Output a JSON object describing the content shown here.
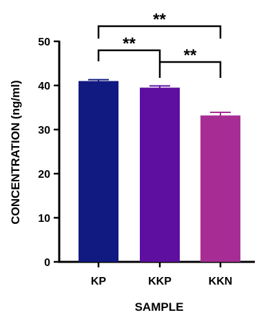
{
  "chart_data": {
    "type": "bar",
    "categories": [
      "KP",
      "KKP",
      "KKN"
    ],
    "values": [
      41,
      39.5,
      33.2
    ],
    "errors": [
      0.3,
      0.4,
      0.7
    ],
    "colors": [
      "#111a80",
      "#5e0fa0",
      "#a72d94"
    ],
    "error_colors": [
      "#111a80",
      "#5e0fa0",
      "#a72d94"
    ],
    "xlabel": "SAMPLE",
    "ylabel": "CONCENTRATION (ng/ml)",
    "ylim": [
      0,
      50
    ],
    "yticks": [
      "0",
      "10",
      "20",
      "30",
      "40",
      "50"
    ],
    "grid": false,
    "significance": [
      {
        "from": "KP",
        "to": "KKP",
        "label": "**"
      },
      {
        "from": "KKP",
        "to": "KKN",
        "label": "**"
      },
      {
        "from": "KP",
        "to": "KKN",
        "label": "**"
      }
    ]
  }
}
